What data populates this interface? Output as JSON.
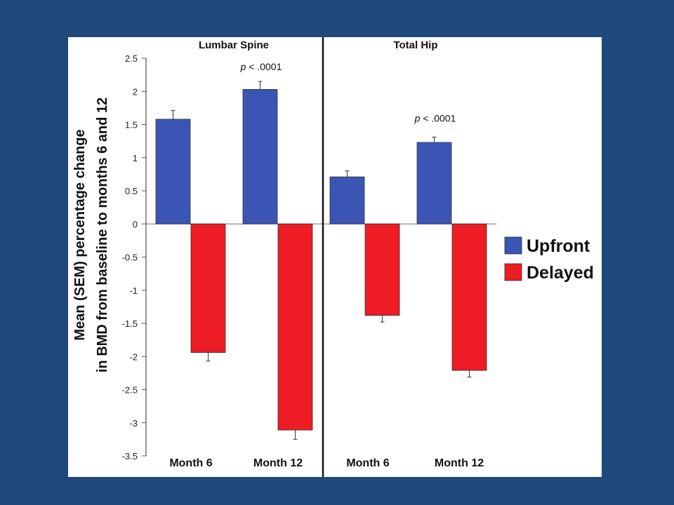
{
  "colors": {
    "background": "#1f497d",
    "panel": "#ffffff",
    "upfront": "#3a55b4",
    "delayed": "#ee1c24"
  },
  "chart_data": {
    "type": "bar",
    "ylabel_lines": [
      "Mean (SEM) percentage change",
      "in BMD from baseline to months 6 and 12"
    ],
    "ylim": [
      -3.5,
      2.5
    ],
    "yticks": [
      "2.5",
      "2",
      "1.5",
      "1",
      "0.5",
      "0",
      "-0.5",
      "-1",
      "-1.5",
      "-2",
      "-2.5",
      "-3",
      "-3.5"
    ],
    "ytick_values": [
      2.5,
      2,
      1.5,
      1,
      0.5,
      0,
      -0.5,
      -1,
      -1.5,
      -2,
      -2.5,
      -3,
      -3.5
    ],
    "legend_position": "right",
    "series_names": [
      "Upfront",
      "Delayed"
    ],
    "panels": [
      {
        "title": "Lumbar Spine",
        "categories": [
          "Month 6",
          "Month 12"
        ],
        "series": [
          {
            "name": "Upfront",
            "values": [
              1.58,
              2.03
            ],
            "sem": [
              0.13,
              0.12
            ]
          },
          {
            "name": "Delayed",
            "values": [
              -1.94,
              -3.11
            ],
            "sem": [
              0.13,
              0.14
            ]
          }
        ],
        "annotation": {
          "category_index": 1,
          "p_prefix": "p",
          "p_rest": " < .0001",
          "anchor_value": 2.28
        }
      },
      {
        "title": "Total Hip",
        "categories": [
          "Month 6",
          "Month 12"
        ],
        "series": [
          {
            "name": "Upfront",
            "values": [
              0.71,
              1.23
            ],
            "sem": [
              0.09,
              0.08
            ]
          },
          {
            "name": "Delayed",
            "values": [
              -1.38,
              -2.21
            ],
            "sem": [
              0.1,
              0.1
            ]
          }
        ],
        "annotation": {
          "category_index": 1,
          "p_prefix": "p",
          "p_rest": " < .0001",
          "anchor_value": 1.5
        }
      }
    ]
  }
}
